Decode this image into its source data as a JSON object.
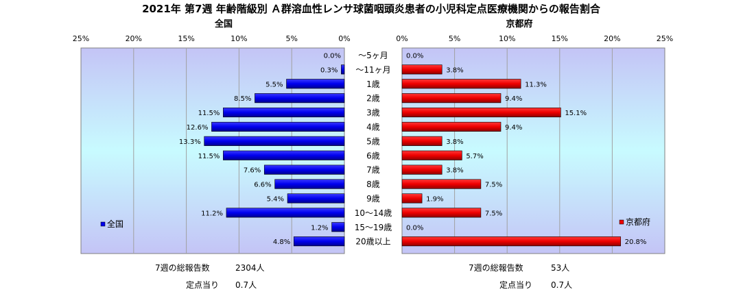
{
  "chart_data": {
    "type": "bar",
    "title": "2021年 第7週 年齢階級別 Ａ群溶血性レンサ球菌咽頭炎患者の小児科定点医療機関からの報告割合",
    "categories": [
      "～5ヶ月",
      "～11ヶ月",
      "1歳",
      "2歳",
      "3歳",
      "4歳",
      "5歳",
      "6歳",
      "7歳",
      "8歳",
      "9歳",
      "10～14歳",
      "15～19歳",
      "20歳以上"
    ],
    "series": [
      {
        "name": "全国",
        "values": [
          0.0,
          0.3,
          5.5,
          8.5,
          11.5,
          12.6,
          13.3,
          11.5,
          7.6,
          6.6,
          5.4,
          11.2,
          1.2,
          4.8
        ],
        "labels": [
          "0.0%",
          "0.3%",
          "5.5%",
          "8.5%",
          "11.5%",
          "12.6%",
          "13.3%",
          "11.5%",
          "7.6%",
          "6.6%",
          "5.4%",
          "11.2%",
          "1.2%",
          "4.8%"
        ],
        "color": "#0000ee"
      },
      {
        "name": "京都府",
        "values": [
          0.0,
          3.8,
          11.3,
          9.4,
          15.1,
          9.4,
          3.8,
          5.7,
          3.8,
          7.5,
          1.9,
          7.5,
          0.0,
          20.8
        ],
        "labels": [
          "0.0%",
          "3.8%",
          "11.3%",
          "9.4%",
          "15.1%",
          "9.4%",
          "3.8%",
          "5.7%",
          "3.8%",
          "7.5%",
          "1.9%",
          "7.5%",
          "0.0%",
          "20.8%"
        ],
        "color": "#ee0000"
      }
    ],
    "xlim": [
      0,
      25
    ],
    "ticks": [
      0,
      5,
      10,
      15,
      20,
      25
    ],
    "tick_labels": [
      "0%",
      "5%",
      "10%",
      "15%",
      "20%",
      "25%"
    ],
    "left_panel": {
      "subtitle": "全国",
      "legend": "全国",
      "footer_total_label": "7週の総報告数",
      "footer_total_value": "2304人",
      "footer_per_label": "定点当り",
      "footer_per_value": "0.7人"
    },
    "right_panel": {
      "subtitle": "京都府",
      "legend": "京都府",
      "footer_total_label": "7週の総報告数",
      "footer_total_value": "53人",
      "footer_per_label": "定点当り",
      "footer_per_value": "0.7人"
    },
    "grid": true
  },
  "colors": {
    "national": "#0000ee",
    "kyoto": "#ee0000",
    "plot_bg_top": "#c4c4f6",
    "plot_bg_mid": "#c8faff"
  }
}
